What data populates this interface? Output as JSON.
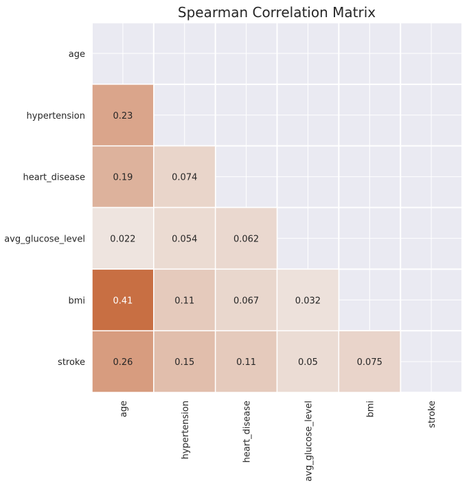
{
  "chart_data": {
    "type": "heatmap",
    "title": "Spearman Correlation Matrix",
    "variables": [
      "age",
      "hypertension",
      "heart_disease",
      "avg_glucose_level",
      "bmi",
      "stroke"
    ],
    "mask": "upper-triangle-and-diagonal",
    "values": [
      [
        null,
        null,
        null,
        null,
        null,
        null
      ],
      [
        0.23,
        null,
        null,
        null,
        null,
        null
      ],
      [
        0.19,
        0.074,
        null,
        null,
        null,
        null
      ],
      [
        0.022,
        0.054,
        0.062,
        null,
        null,
        null
      ],
      [
        0.41,
        0.11,
        0.067,
        0.032,
        null,
        null
      ],
      [
        0.26,
        0.15,
        0.11,
        0.05,
        0.075,
        null
      ]
    ],
    "labels": [
      [
        null,
        null,
        null,
        null,
        null,
        null
      ],
      [
        "0.23",
        null,
        null,
        null,
        null,
        null
      ],
      [
        "0.19",
        "0.074",
        null,
        null,
        null,
        null
      ],
      [
        "0.022",
        "0.054",
        "0.062",
        null,
        null,
        null
      ],
      [
        "0.41",
        "0.11",
        "0.067",
        "0.032",
        null,
        null
      ],
      [
        "0.26",
        "0.15",
        "0.11",
        "0.05",
        "0.075",
        null
      ]
    ],
    "colorscale": {
      "zero": "#f0ebe8",
      "max_color": "#c86f43",
      "max_value": 0.41
    },
    "background": "#eaeaf2",
    "grid": true
  }
}
